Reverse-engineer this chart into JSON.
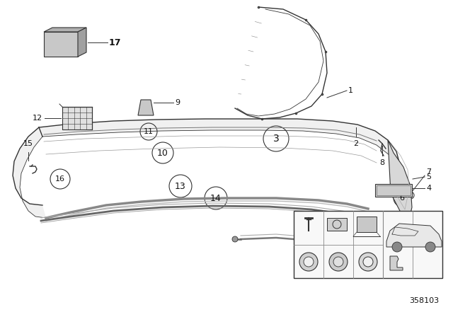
{
  "bg_color": "#ffffff",
  "fig_width": 6.4,
  "fig_height": 4.48,
  "dpi": 100,
  "part_num_label": "358103",
  "label_color": "#111111",
  "line_color": "#333333",
  "fill_light": "#e8e8e8",
  "fill_mid": "#cccccc",
  "fill_dark": "#aaaaaa",
  "border_color": "#aaaaaa"
}
